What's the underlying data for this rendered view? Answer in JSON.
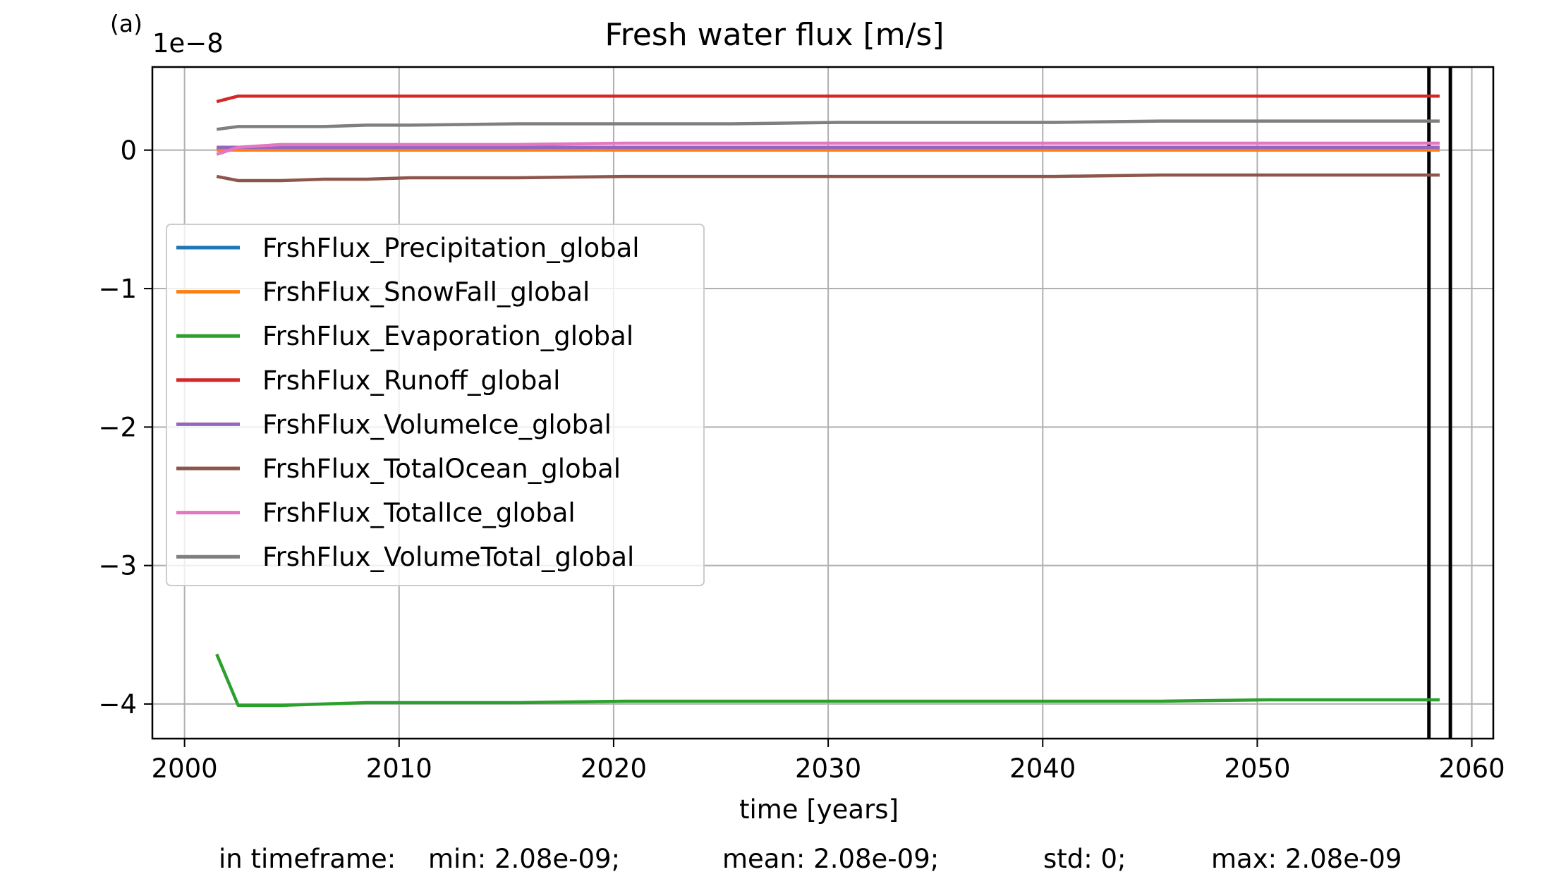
{
  "panel_label": "(a)",
  "exponent_label": "1e−8",
  "chart_data": {
    "type": "line",
    "title": "Fresh water flux [m/s]",
    "xlabel": "time [years]",
    "ylabel": "",
    "xlim": [
      1998.5,
      2061
    ],
    "ylim": [
      -4.25,
      0.6
    ],
    "y_scale_factor": 1e-08,
    "x_ticks": [
      2000,
      2010,
      2020,
      2030,
      2040,
      2050,
      2060
    ],
    "x_tick_labels": [
      "2000",
      "2010",
      "2020",
      "2030",
      "2040",
      "2050",
      "2060"
    ],
    "y_ticks": [
      0,
      -1,
      -2,
      -3,
      -4
    ],
    "y_tick_labels": [
      "0",
      "−1",
      "−2",
      "−3",
      "−4"
    ],
    "grid": true,
    "legend_position": "center-left",
    "vertical_lines": [
      2058,
      2059
    ],
    "x": [
      2001.5,
      2002.5,
      2004.5,
      2006.5,
      2008.5,
      2010.5,
      2015.5,
      2020.5,
      2025.5,
      2030.5,
      2035.5,
      2040.5,
      2045.5,
      2050.5,
      2055.5,
      2058.5
    ],
    "series": [
      {
        "name": "FrshFlux_Precipitation_global",
        "color": "#1f77b4",
        "values": [
          0.01,
          0.01,
          0.01,
          0.01,
          0.01,
          0.01,
          0.01,
          0.01,
          0.01,
          0.01,
          0.01,
          0.01,
          0.01,
          0.01,
          0.01,
          0.01
        ]
      },
      {
        "name": "FrshFlux_SnowFall_global",
        "color": "#ff7f0e",
        "values": [
          0.0,
          0.0,
          0.0,
          0.0,
          0.0,
          0.0,
          0.0,
          0.0,
          0.0,
          0.0,
          0.0,
          0.0,
          0.0,
          0.0,
          0.0,
          0.0
        ]
      },
      {
        "name": "FrshFlux_Evaporation_global",
        "color": "#2ca02c",
        "values": [
          -3.64,
          -4.01,
          -4.01,
          -4.0,
          -3.99,
          -3.99,
          -3.99,
          -3.98,
          -3.98,
          -3.98,
          -3.98,
          -3.98,
          -3.98,
          -3.97,
          -3.97,
          -3.97
        ]
      },
      {
        "name": "FrshFlux_Runoff_global",
        "color": "#d62728",
        "values": [
          0.35,
          0.39,
          0.39,
          0.39,
          0.39,
          0.39,
          0.39,
          0.39,
          0.39,
          0.39,
          0.39,
          0.39,
          0.39,
          0.39,
          0.39,
          0.39
        ]
      },
      {
        "name": "FrshFlux_VolumeIce_global",
        "color": "#9467bd",
        "values": [
          0.02,
          0.02,
          0.02,
          0.02,
          0.02,
          0.02,
          0.02,
          0.02,
          0.02,
          0.02,
          0.02,
          0.02,
          0.02,
          0.02,
          0.02,
          0.02
        ]
      },
      {
        "name": "FrshFlux_TotalOcean_global",
        "color": "#8c564b",
        "values": [
          -0.19,
          -0.22,
          -0.22,
          -0.21,
          -0.21,
          -0.2,
          -0.2,
          -0.19,
          -0.19,
          -0.19,
          -0.19,
          -0.19,
          -0.18,
          -0.18,
          -0.18,
          -0.18
        ]
      },
      {
        "name": "FrshFlux_TotalIce_global",
        "color": "#e377c2",
        "values": [
          -0.03,
          0.02,
          0.04,
          0.04,
          0.04,
          0.04,
          0.04,
          0.05,
          0.05,
          0.05,
          0.05,
          0.05,
          0.05,
          0.05,
          0.05,
          0.05
        ]
      },
      {
        "name": "FrshFlux_VolumeTotal_global",
        "color": "#7f7f7f",
        "values": [
          0.15,
          0.17,
          0.17,
          0.17,
          0.18,
          0.18,
          0.19,
          0.19,
          0.19,
          0.2,
          0.2,
          0.2,
          0.21,
          0.21,
          0.21,
          0.21
        ]
      }
    ]
  },
  "stats": {
    "prefix": "in timeframe:",
    "min": "min: 2.08e-09;",
    "mean": "mean: 2.08e-09;",
    "std": "std: 0;",
    "max": "max: 2.08e-09"
  }
}
